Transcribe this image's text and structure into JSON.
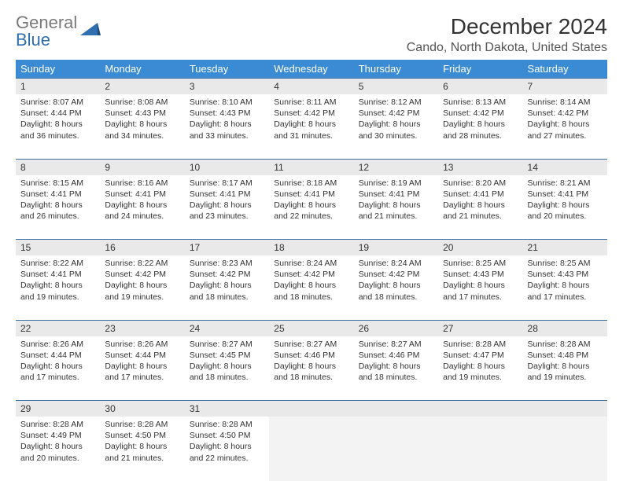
{
  "brand": {
    "line1": "General",
    "line2": "Blue"
  },
  "title": "December 2024",
  "location": "Cando, North Dakota, United States",
  "colors": {
    "header_bg": "#3b8bd4",
    "header_fg": "#ffffff",
    "daynum_bg": "#e9e9e9",
    "rule": "#3b6fa0",
    "brand_gray": "#7a7a7a",
    "brand_blue": "#2f6fb0"
  },
  "weekdays": [
    "Sunday",
    "Monday",
    "Tuesday",
    "Wednesday",
    "Thursday",
    "Friday",
    "Saturday"
  ],
  "weeks": [
    [
      {
        "n": "1",
        "sr": "8:07 AM",
        "ss": "4:44 PM",
        "dl": "8 hours and 36 minutes."
      },
      {
        "n": "2",
        "sr": "8:08 AM",
        "ss": "4:43 PM",
        "dl": "8 hours and 34 minutes."
      },
      {
        "n": "3",
        "sr": "8:10 AM",
        "ss": "4:43 PM",
        "dl": "8 hours and 33 minutes."
      },
      {
        "n": "4",
        "sr": "8:11 AM",
        "ss": "4:42 PM",
        "dl": "8 hours and 31 minutes."
      },
      {
        "n": "5",
        "sr": "8:12 AM",
        "ss": "4:42 PM",
        "dl": "8 hours and 30 minutes."
      },
      {
        "n": "6",
        "sr": "8:13 AM",
        "ss": "4:42 PM",
        "dl": "8 hours and 28 minutes."
      },
      {
        "n": "7",
        "sr": "8:14 AM",
        "ss": "4:42 PM",
        "dl": "8 hours and 27 minutes."
      }
    ],
    [
      {
        "n": "8",
        "sr": "8:15 AM",
        "ss": "4:41 PM",
        "dl": "8 hours and 26 minutes."
      },
      {
        "n": "9",
        "sr": "8:16 AM",
        "ss": "4:41 PM",
        "dl": "8 hours and 24 minutes."
      },
      {
        "n": "10",
        "sr": "8:17 AM",
        "ss": "4:41 PM",
        "dl": "8 hours and 23 minutes."
      },
      {
        "n": "11",
        "sr": "8:18 AM",
        "ss": "4:41 PM",
        "dl": "8 hours and 22 minutes."
      },
      {
        "n": "12",
        "sr": "8:19 AM",
        "ss": "4:41 PM",
        "dl": "8 hours and 21 minutes."
      },
      {
        "n": "13",
        "sr": "8:20 AM",
        "ss": "4:41 PM",
        "dl": "8 hours and 21 minutes."
      },
      {
        "n": "14",
        "sr": "8:21 AM",
        "ss": "4:41 PM",
        "dl": "8 hours and 20 minutes."
      }
    ],
    [
      {
        "n": "15",
        "sr": "8:22 AM",
        "ss": "4:41 PM",
        "dl": "8 hours and 19 minutes."
      },
      {
        "n": "16",
        "sr": "8:22 AM",
        "ss": "4:42 PM",
        "dl": "8 hours and 19 minutes."
      },
      {
        "n": "17",
        "sr": "8:23 AM",
        "ss": "4:42 PM",
        "dl": "8 hours and 18 minutes."
      },
      {
        "n": "18",
        "sr": "8:24 AM",
        "ss": "4:42 PM",
        "dl": "8 hours and 18 minutes."
      },
      {
        "n": "19",
        "sr": "8:24 AM",
        "ss": "4:42 PM",
        "dl": "8 hours and 18 minutes."
      },
      {
        "n": "20",
        "sr": "8:25 AM",
        "ss": "4:43 PM",
        "dl": "8 hours and 17 minutes."
      },
      {
        "n": "21",
        "sr": "8:25 AM",
        "ss": "4:43 PM",
        "dl": "8 hours and 17 minutes."
      }
    ],
    [
      {
        "n": "22",
        "sr": "8:26 AM",
        "ss": "4:44 PM",
        "dl": "8 hours and 17 minutes."
      },
      {
        "n": "23",
        "sr": "8:26 AM",
        "ss": "4:44 PM",
        "dl": "8 hours and 17 minutes."
      },
      {
        "n": "24",
        "sr": "8:27 AM",
        "ss": "4:45 PM",
        "dl": "8 hours and 18 minutes."
      },
      {
        "n": "25",
        "sr": "8:27 AM",
        "ss": "4:46 PM",
        "dl": "8 hours and 18 minutes."
      },
      {
        "n": "26",
        "sr": "8:27 AM",
        "ss": "4:46 PM",
        "dl": "8 hours and 18 minutes."
      },
      {
        "n": "27",
        "sr": "8:28 AM",
        "ss": "4:47 PM",
        "dl": "8 hours and 19 minutes."
      },
      {
        "n": "28",
        "sr": "8:28 AM",
        "ss": "4:48 PM",
        "dl": "8 hours and 19 minutes."
      }
    ],
    [
      {
        "n": "29",
        "sr": "8:28 AM",
        "ss": "4:49 PM",
        "dl": "8 hours and 20 minutes."
      },
      {
        "n": "30",
        "sr": "8:28 AM",
        "ss": "4:50 PM",
        "dl": "8 hours and 21 minutes."
      },
      {
        "n": "31",
        "sr": "8:28 AM",
        "ss": "4:50 PM",
        "dl": "8 hours and 22 minutes."
      },
      null,
      null,
      null,
      null
    ]
  ],
  "labels": {
    "sunrise": "Sunrise: ",
    "sunset": "Sunset: ",
    "daylight": "Daylight: "
  }
}
